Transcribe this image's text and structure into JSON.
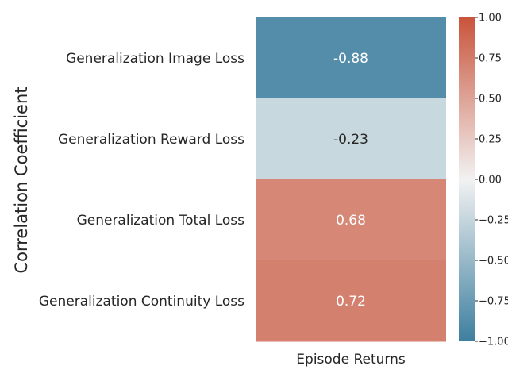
{
  "chart_data": {
    "type": "heatmap",
    "ylabel": "Correlation Coefficient",
    "columns": [
      "Episode Returns"
    ],
    "rows": [
      "Generalization Image Loss",
      "Generalization Reward Loss",
      "Generalization Total Loss",
      "Generalization Continuity Loss"
    ],
    "values": [
      [
        -0.88
      ],
      [
        -0.23
      ],
      [
        0.68
      ],
      [
        0.72
      ]
    ],
    "value_labels": [
      "-0.88",
      "-0.23",
      "0.68",
      "0.72"
    ],
    "colorbar": {
      "range": [
        -1.0,
        1.0
      ],
      "ticks": [
        -1.0,
        -0.75,
        -0.5,
        -0.25,
        0.0,
        0.25,
        0.5,
        0.75,
        1.0
      ],
      "tick_labels": [
        "−1.00",
        "−0.75",
        "−0.50",
        "−0.25",
        "0.00",
        "0.25",
        "0.50",
        "0.75",
        "1.00"
      ],
      "colors": {
        "low": "#3d7f9f",
        "mid": "#f2f2f2",
        "high": "#c9543b"
      }
    }
  }
}
